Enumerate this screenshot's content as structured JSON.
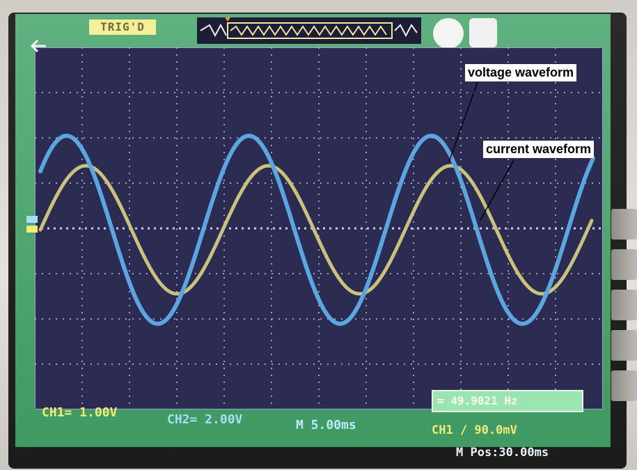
{
  "annotations": {
    "voltage_label": "voltage waveform",
    "current_label": "current waveform"
  },
  "scope": {
    "trigger_status": "TRIG'D",
    "ch1_scale": "CH1= 1.00V",
    "ch2_scale": "CH2= 2.00V",
    "timebase": "M 5.00ms",
    "frequency": "= 49.9021 Hz",
    "trigger_level": "CH1 / 90.0mV",
    "horizontal_position": "M Pos:30.00ms"
  },
  "colors": {
    "screen_bg": "#2c2b52",
    "frame_green": "#4ea56f",
    "voltage_trace": "#5aa6e0",
    "current_trace": "#c9c27a",
    "ch1_text": "#f2ec72"
  },
  "icons": {
    "channel_marker": "channel-marker-icon",
    "run_indicator": "circle-icon",
    "usb_indicator": "usb-key-icon",
    "trigger_pointer": "trigger-pointer-icon"
  }
}
